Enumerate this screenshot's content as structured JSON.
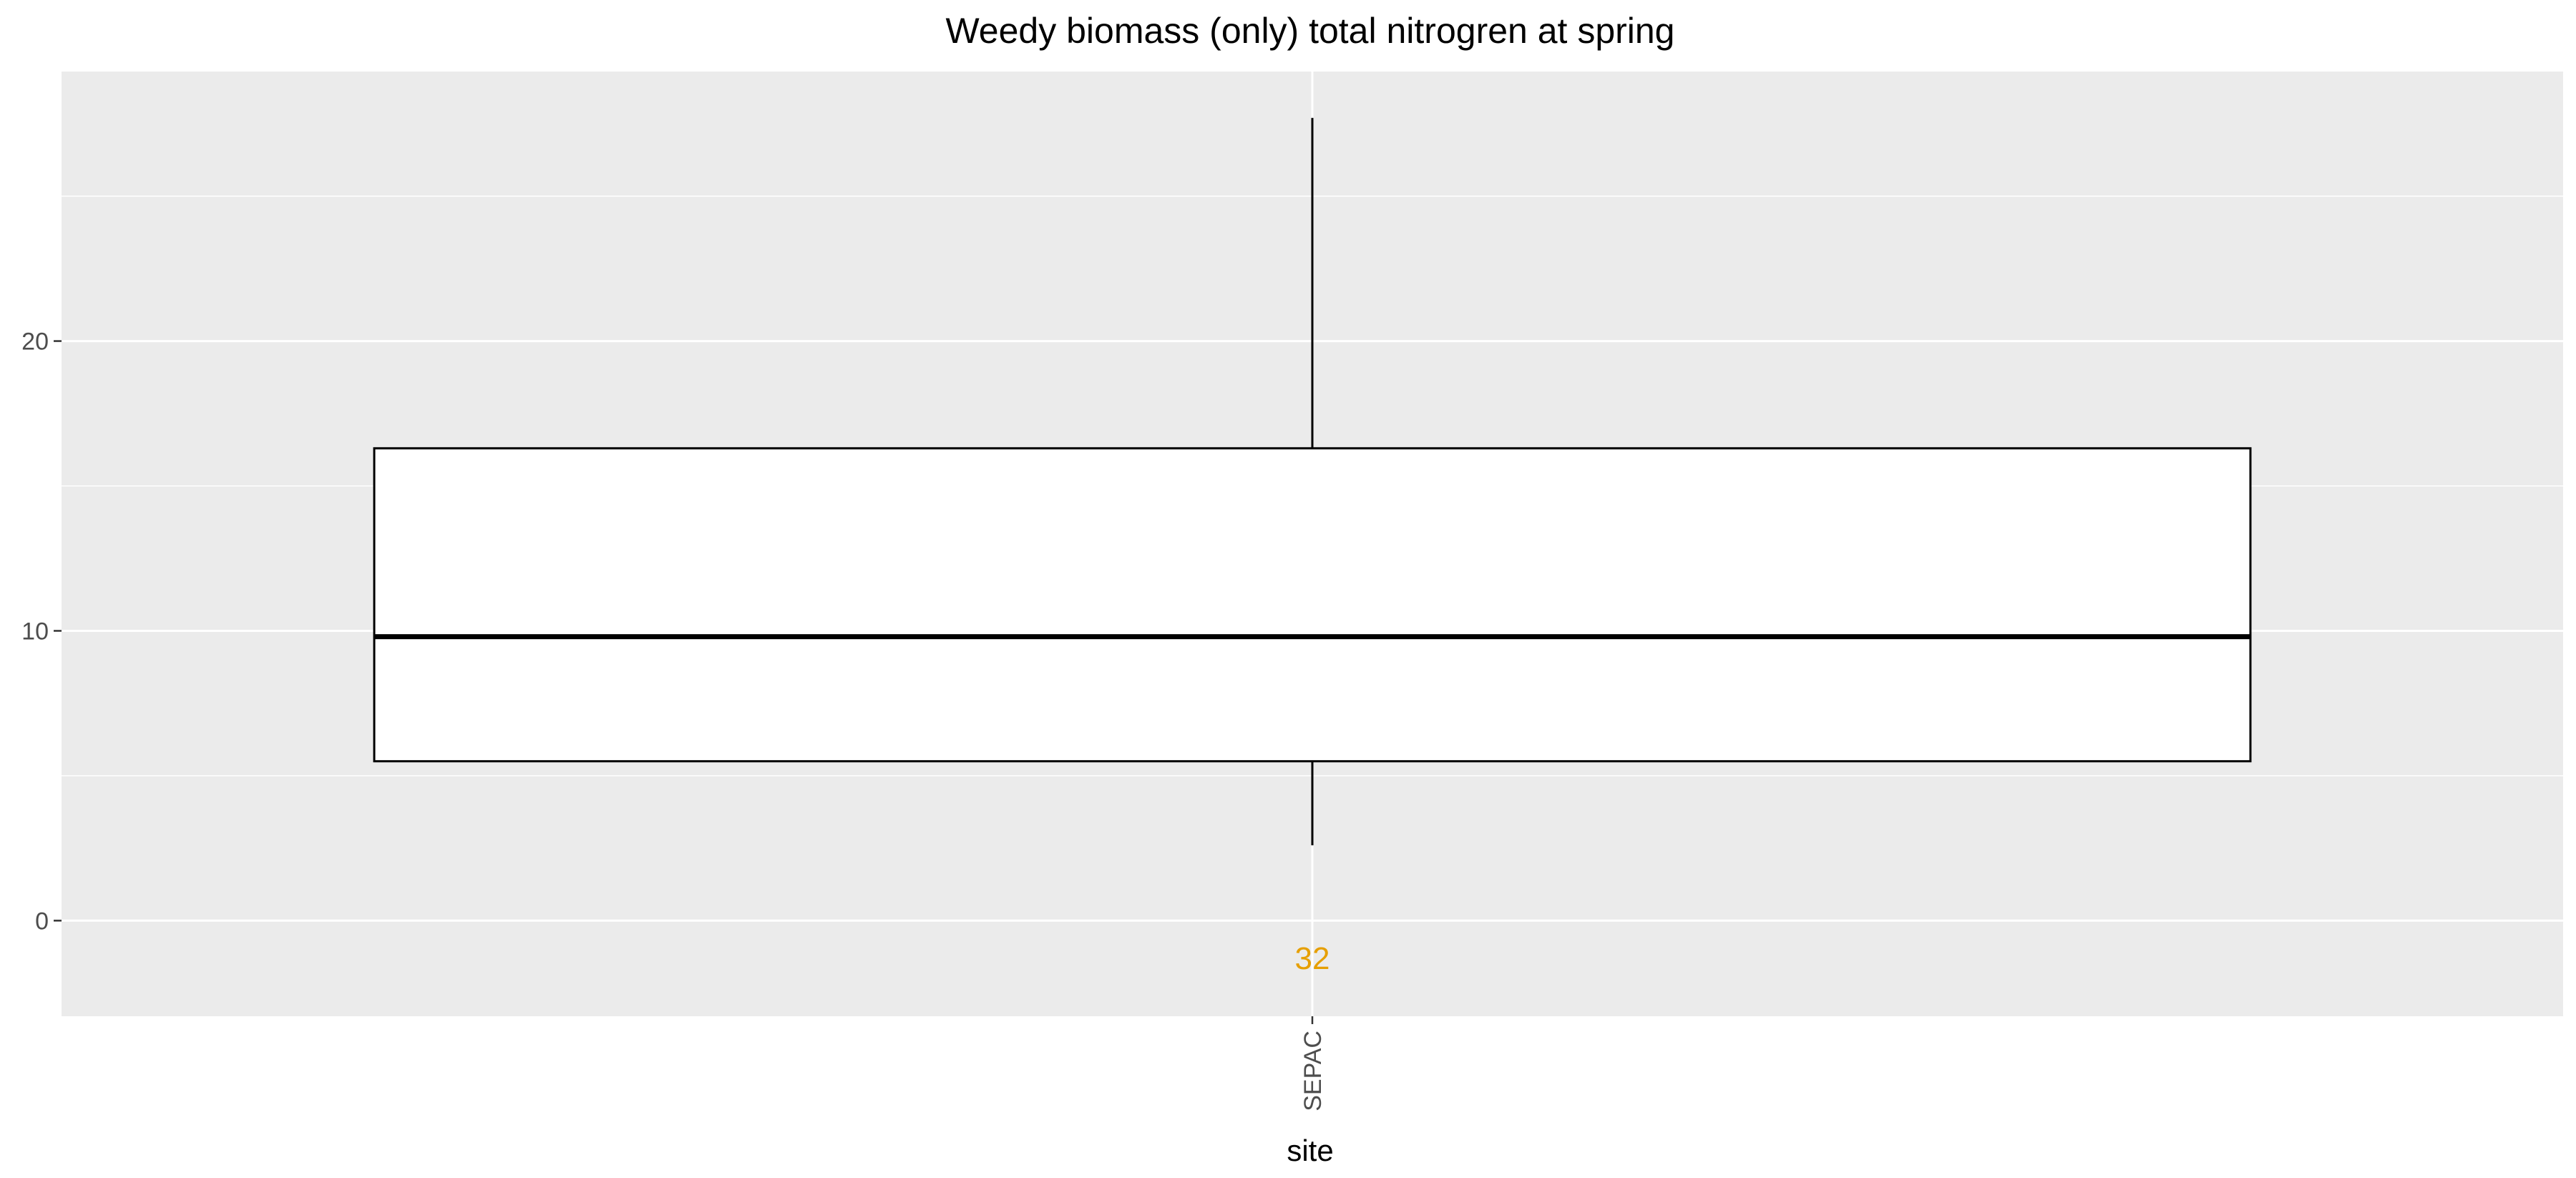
{
  "chart_data": {
    "type": "boxplot",
    "title": "Weedy biomass (only) total nitrogren at spring",
    "xlabel": "site",
    "ylabel": "",
    "categories": [
      "SEPAC"
    ],
    "ylim": [
      -3.3,
      29.3
    ],
    "yticks": [
      0,
      10,
      20
    ],
    "ytick_labels": [
      "0",
      "10",
      "20"
    ],
    "grid": true,
    "boxes": [
      {
        "category": "SEPAC",
        "whisker_low": 2.6,
        "q1": 5.5,
        "median": 9.8,
        "q3": 16.3,
        "whisker_high": 27.7
      }
    ],
    "count_labels": [
      {
        "category": "SEPAC",
        "text": "32",
        "y": -1.3
      }
    ],
    "colors": {
      "panel_background": "#ebebeb",
      "grid": "#ffffff",
      "box_fill": "#ffffff",
      "box_line": "#000000",
      "count_label": "#e69f00"
    }
  }
}
